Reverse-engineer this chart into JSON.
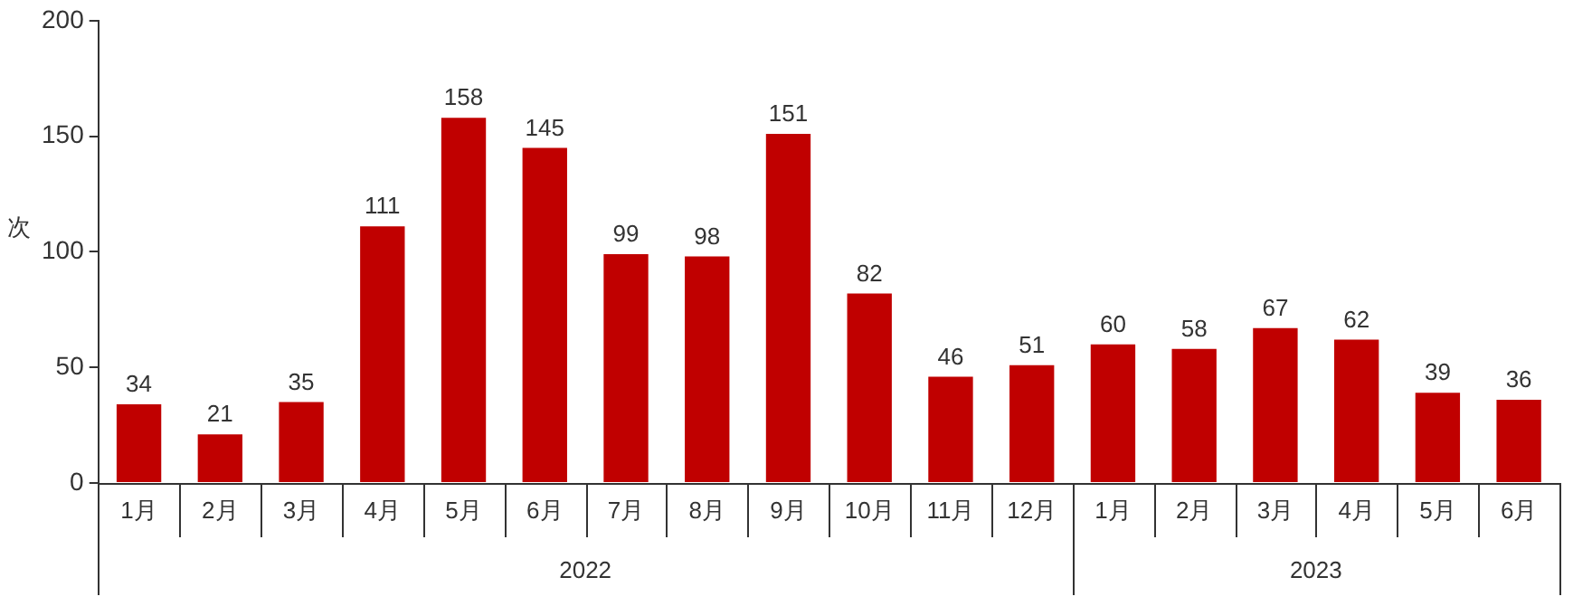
{
  "chart_data": {
    "type": "bar",
    "ylabel": "次",
    "categories": [
      "1月",
      "2月",
      "3月",
      "4月",
      "5月",
      "6月",
      "7月",
      "8月",
      "9月",
      "10月",
      "11月",
      "12月",
      "1月",
      "2月",
      "3月",
      "4月",
      "5月",
      "6月"
    ],
    "values": [
      34,
      21,
      35,
      111,
      158,
      145,
      99,
      98,
      151,
      82,
      46,
      51,
      60,
      58,
      67,
      62,
      39,
      36
    ],
    "color": "#c00000",
    "ylim": [
      0,
      200
    ],
    "yticks": [
      0,
      50,
      100,
      150,
      200
    ],
    "grid": false,
    "legend": false,
    "data_labels": true,
    "annotations": [
      "2022",
      "2023"
    ]
  }
}
